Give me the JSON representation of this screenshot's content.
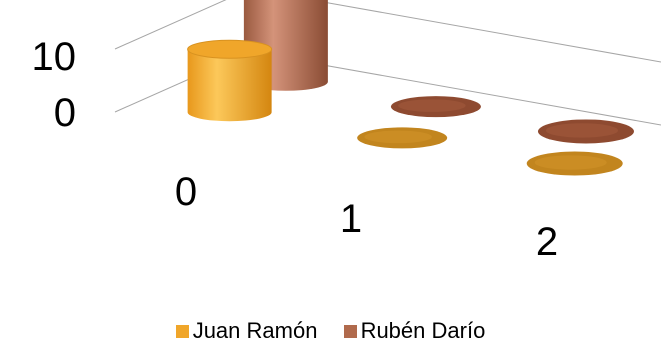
{
  "chart_data": {
    "type": "bar",
    "variant": "3d-cylinder",
    "title": "",
    "xlabel": "",
    "ylabel": "",
    "categories": [
      "0",
      "1",
      "2"
    ],
    "series": [
      {
        "name": "Juan Ramón",
        "values": [
          10,
          0,
          0
        ],
        "color": "#f0a62a"
      },
      {
        "name": "Rubén Darío",
        "values": [
          15,
          0,
          0
        ],
        "color": "#b06a4c"
      }
    ],
    "y_ticks": [
      "0",
      "10"
    ],
    "ylim": [
      0,
      20
    ],
    "grid": true,
    "legend_position": "bottom"
  }
}
